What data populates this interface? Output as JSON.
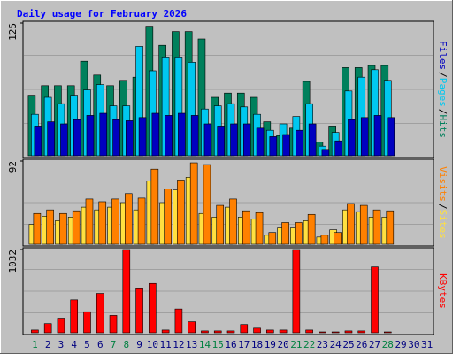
{
  "chart_data": [
    {
      "type": "bar",
      "title": "Daily usage for February 2026",
      "categories": [
        "1",
        "2",
        "3",
        "4",
        "5",
        "6",
        "7",
        "8",
        "9",
        "10",
        "11",
        "12",
        "13",
        "14",
        "15",
        "16",
        "17",
        "18",
        "19",
        "20",
        "21",
        "22",
        "23",
        "24",
        "25",
        "26",
        "27",
        "28",
        "29",
        "30",
        "31"
      ],
      "category_colors": [
        "#008040",
        "#000080",
        "#000080",
        "#000080",
        "#000080",
        "#000080",
        "#008040",
        "#008040",
        "#000080",
        "#000080",
        "#000080",
        "#000080",
        "#000080",
        "#008040",
        "#008040",
        "#000080",
        "#000080",
        "#000080",
        "#000080",
        "#000080",
        "#008040",
        "#008040",
        "#000080",
        "#000080",
        "#000080",
        "#000080",
        "#000080",
        "#008040",
        "#000080",
        "#000080",
        "#000080"
      ],
      "separator": "/",
      "ylim": [
        0,
        125
      ],
      "yticks": [
        125
      ],
      "grid": true,
      "series": [
        {
          "name": "Hits",
          "color": "#00805c",
          "values": [
            57,
            66,
            66,
            66,
            89,
            76,
            66,
            71,
            74,
            122,
            104,
            117,
            117,
            110,
            55,
            59,
            59,
            55,
            32,
            19,
            26,
            70,
            13,
            28,
            83,
            83,
            85,
            85,
            null,
            null,
            null
          ]
        },
        {
          "name": "Pages",
          "color": "#00c8f0",
          "values": [
            39,
            55,
            49,
            57,
            62,
            67,
            47,
            47,
            103,
            80,
            93,
            93,
            88,
            44,
            47,
            49,
            46,
            39,
            24,
            30,
            37,
            49,
            9,
            22,
            61,
            74,
            81,
            71,
            null,
            null,
            null
          ]
        },
        {
          "name": "Files",
          "color": "#0000c0",
          "values": [
            28,
            32,
            30,
            34,
            38,
            40,
            34,
            33,
            36,
            40,
            38,
            40,
            38,
            30,
            28,
            30,
            30,
            26,
            18,
            20,
            24,
            30,
            6,
            14,
            34,
            36,
            38,
            36,
            null,
            null,
            null
          ]
        }
      ]
    },
    {
      "type": "bar",
      "ylim": [
        0,
        92
      ],
      "yticks": [
        92
      ],
      "grid": true,
      "series": [
        {
          "name": "Sites",
          "color": "#ffe040",
          "values": [
            22,
            31,
            26,
            30,
            41,
            38,
            41,
            46,
            38,
            70,
            46,
            60,
            74,
            34,
            30,
            41,
            30,
            28,
            10,
            18,
            18,
            26,
            8,
            16,
            38,
            36,
            30,
            30,
            null,
            null,
            null
          ]
        },
        {
          "name": "Visits",
          "color": "#ff8000",
          "values": [
            34,
            38,
            34,
            37,
            50,
            47,
            50,
            56,
            51,
            83,
            61,
            71,
            90,
            88,
            43,
            50,
            37,
            35,
            13,
            24,
            24,
            33,
            10,
            13,
            45,
            43,
            38,
            37,
            null,
            null,
            null
          ]
        }
      ]
    },
    {
      "type": "bar",
      "ylim": [
        0,
        1032
      ],
      "yticks": [
        1032
      ],
      "grid": true,
      "series": [
        {
          "name": "KBytes",
          "color": "#ff0000",
          "values": [
            34,
            113,
            181,
            408,
            261,
            488,
            215,
            1032,
            556,
            612,
            34,
            295,
            136,
            23,
            23,
            23,
            102,
            57,
            34,
            34,
            1032,
            34,
            11,
            11,
            23,
            23,
            816,
            11,
            null,
            null,
            null
          ]
        }
      ]
    }
  ]
}
